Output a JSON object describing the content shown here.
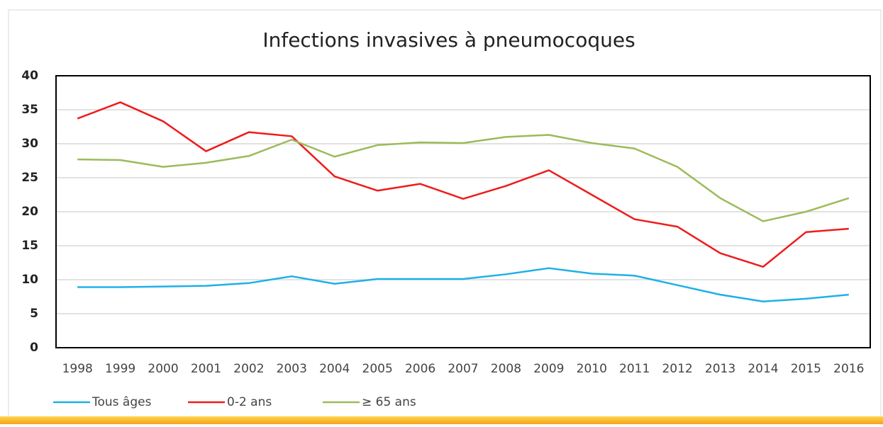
{
  "chart_data": {
    "type": "line",
    "title": "Infections invasives à pneumocoques",
    "categories": [
      "1998",
      "1999",
      "2000",
      "2001",
      "2002",
      "2003",
      "2004",
      "2005",
      "2006",
      "2007",
      "2008",
      "2009",
      "2010",
      "2011",
      "2012",
      "2013",
      "2014",
      "2015",
      "2016"
    ],
    "series": [
      {
        "name": "Tous âges",
        "color": "#1fb0e6",
        "values": [
          8.9,
          8.9,
          9.0,
          9.1,
          9.5,
          10.5,
          9.4,
          10.1,
          10.1,
          10.1,
          10.8,
          11.7,
          10.9,
          10.6,
          9.2,
          7.8,
          6.8,
          7.2,
          7.8
        ]
      },
      {
        "name": "0-2 ans",
        "color": "#ee1c1c",
        "values": [
          33.7,
          36.1,
          33.3,
          28.9,
          31.7,
          31.1,
          25.2,
          23.1,
          24.1,
          21.9,
          23.8,
          26.1,
          22.5,
          18.9,
          17.8,
          13.9,
          11.9,
          17.0,
          17.5
        ]
      },
      {
        "name": "≥ 65 ans",
        "color": "#9bbb59",
        "values": [
          27.7,
          27.6,
          26.6,
          27.2,
          28.2,
          30.6,
          28.1,
          29.8,
          30.2,
          30.1,
          31.0,
          31.3,
          30.1,
          29.3,
          26.6,
          22.0,
          18.6,
          20.0,
          22.0
        ]
      }
    ],
    "ylim": [
      0,
      40
    ],
    "yticks": [
      0,
      5,
      10,
      15,
      20,
      25,
      30,
      35,
      40
    ],
    "grid": true,
    "legend": "bottom-left"
  }
}
